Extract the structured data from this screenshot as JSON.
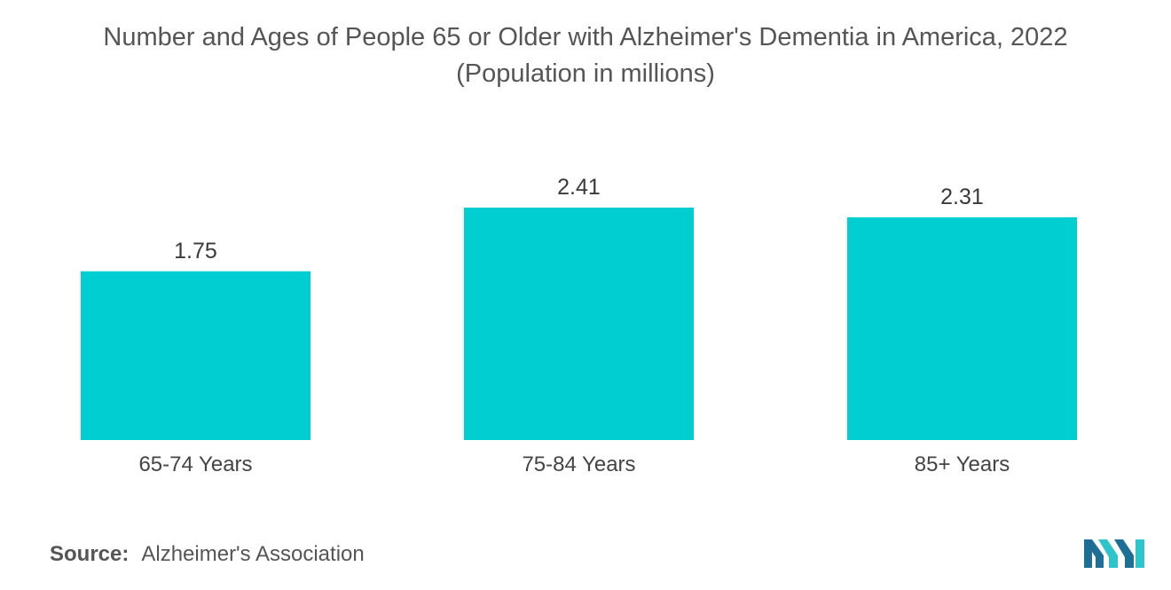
{
  "colors": {
    "bar": "#00CED1",
    "text": "#444444",
    "logo_dark": "#1d6f95",
    "logo_light": "#2ec4c9"
  },
  "chart_data": {
    "type": "bar",
    "title": "Number and Ages of People 65 or Older with Alzheimer's Dementia in America, 2022",
    "subtitle": "(Population in millions)",
    "categories": [
      "65-74 Years",
      "75-84 Years",
      "85+ Years"
    ],
    "values": [
      1.75,
      2.41,
      2.31
    ],
    "data_labels": [
      "1.75",
      "2.41",
      "2.31"
    ],
    "xlabel": "",
    "ylabel": "",
    "ylim": [
      0,
      2.41
    ],
    "grid": false,
    "legend": "none"
  },
  "footer": {
    "source_label": "Source:",
    "source_text": "Alzheimer's Association",
    "logo_icon": "mordor-intelligence-logo-icon"
  }
}
